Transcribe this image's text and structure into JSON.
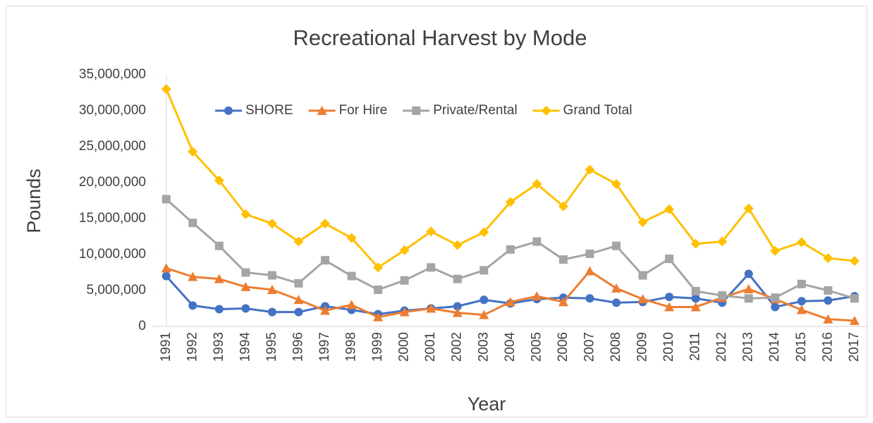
{
  "chart_data": {
    "type": "line",
    "title": "Recreational Harvest by Mode",
    "x_label": "Year",
    "y_label": "Pounds",
    "categories": [
      "1991",
      "1992",
      "1993",
      "1994",
      "1995",
      "1996",
      "1997",
      "1998",
      "1999",
      "2000",
      "2001",
      "2002",
      "2003",
      "2004",
      "2005",
      "2006",
      "2007",
      "2008",
      "2009",
      "2010",
      "2011",
      "2012",
      "2013",
      "2014",
      "2015",
      "2016",
      "2017"
    ],
    "series": [
      {
        "name": "SHORE",
        "color": "#4472c4",
        "marker": "circle",
        "values": [
          7000000,
          2900000,
          2400000,
          2500000,
          2000000,
          2000000,
          2800000,
          2300000,
          1700000,
          2200000,
          2500000,
          2800000,
          3700000,
          3200000,
          3800000,
          4000000,
          3900000,
          3300000,
          3400000,
          4100000,
          3900000,
          3300000,
          7300000,
          2700000,
          3500000,
          3600000,
          4200000
        ]
      },
      {
        "name": "For Hire",
        "color": "#ed7d31",
        "marker": "triangle",
        "values": [
          8100000,
          6900000,
          6600000,
          5500000,
          5100000,
          3700000,
          2200000,
          3000000,
          1300000,
          2000000,
          2500000,
          1900000,
          1600000,
          3400000,
          4200000,
          3400000,
          7700000,
          5300000,
          3800000,
          2700000,
          2700000,
          4000000,
          5200000,
          3800000,
          2300000,
          1000000,
          800000
        ]
      },
      {
        "name": "Private/Rental",
        "color": "#a5a5a5",
        "marker": "square",
        "values": [
          17700000,
          14400000,
          11200000,
          7500000,
          7100000,
          6000000,
          9200000,
          7000000,
          5100000,
          6400000,
          8200000,
          6600000,
          7800000,
          10700000,
          11800000,
          9300000,
          10100000,
          11200000,
          7100000,
          9400000,
          4900000,
          4300000,
          3900000,
          4000000,
          5900000,
          5000000,
          3900000
        ]
      },
      {
        "name": "Grand Total",
        "color": "#ffc000",
        "marker": "diamond",
        "values": [
          33000000,
          24300000,
          20300000,
          15600000,
          14300000,
          11800000,
          14300000,
          12300000,
          8200000,
          10600000,
          13200000,
          11300000,
          13100000,
          17300000,
          19800000,
          16700000,
          21800000,
          19800000,
          14500000,
          16300000,
          11500000,
          11800000,
          16400000,
          10500000,
          11700000,
          9500000,
          9100000
        ]
      }
    ],
    "ylim": [
      0,
      35000000
    ],
    "yticks": [
      0,
      {
        "value": 5000000,
        "label": "5,000,000"
      },
      {
        "value": 10000000,
        "label": "10,000,000"
      },
      {
        "value": 15000000,
        "label": "15,000,000"
      },
      {
        "value": 20000000,
        "label": "20,000,000"
      },
      {
        "value": 25000000,
        "label": "25,000,000"
      },
      {
        "value": 30000000,
        "label": "30,000,000"
      },
      {
        "value": 35000000,
        "label": "35,000,000"
      }
    ],
    "grid": false,
    "legend": "top"
  }
}
